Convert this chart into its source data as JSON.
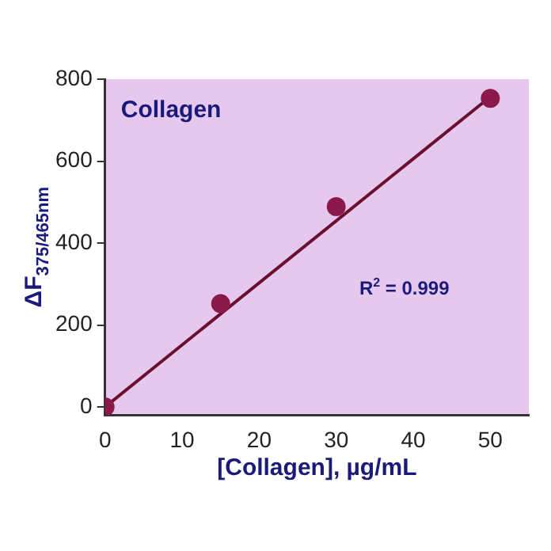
{
  "chart_data": {
    "type": "scatter",
    "title": "Collagen",
    "xlabel": "[Collagen], µg/mL",
    "ylabel": "ΔF$_{375/465nm}$",
    "annotations": [
      "R$^{2}$ = 0.999"
    ],
    "series": [
      {
        "color": "#8b1a4a",
        "x": [
          0,
          15,
          30,
          50
        ],
        "values": [
          0,
          252,
          489,
          753
        ]
      },
      {
        "type": "line",
        "color": "#6b0f2f",
        "marker": "none",
        "x": [
          0,
          50
        ],
        "values": [
          0,
          757
        ]
      }
    ],
    "marker": "circle",
    "line_style": "solid",
    "grid": false,
    "xlim": [
      0,
      55
    ],
    "xticks": [
      0,
      10,
      20,
      30,
      40,
      50
    ],
    "ylim": [
      -20,
      800
    ],
    "yticks": [
      0,
      200,
      400,
      600,
      800
    ]
  }
}
